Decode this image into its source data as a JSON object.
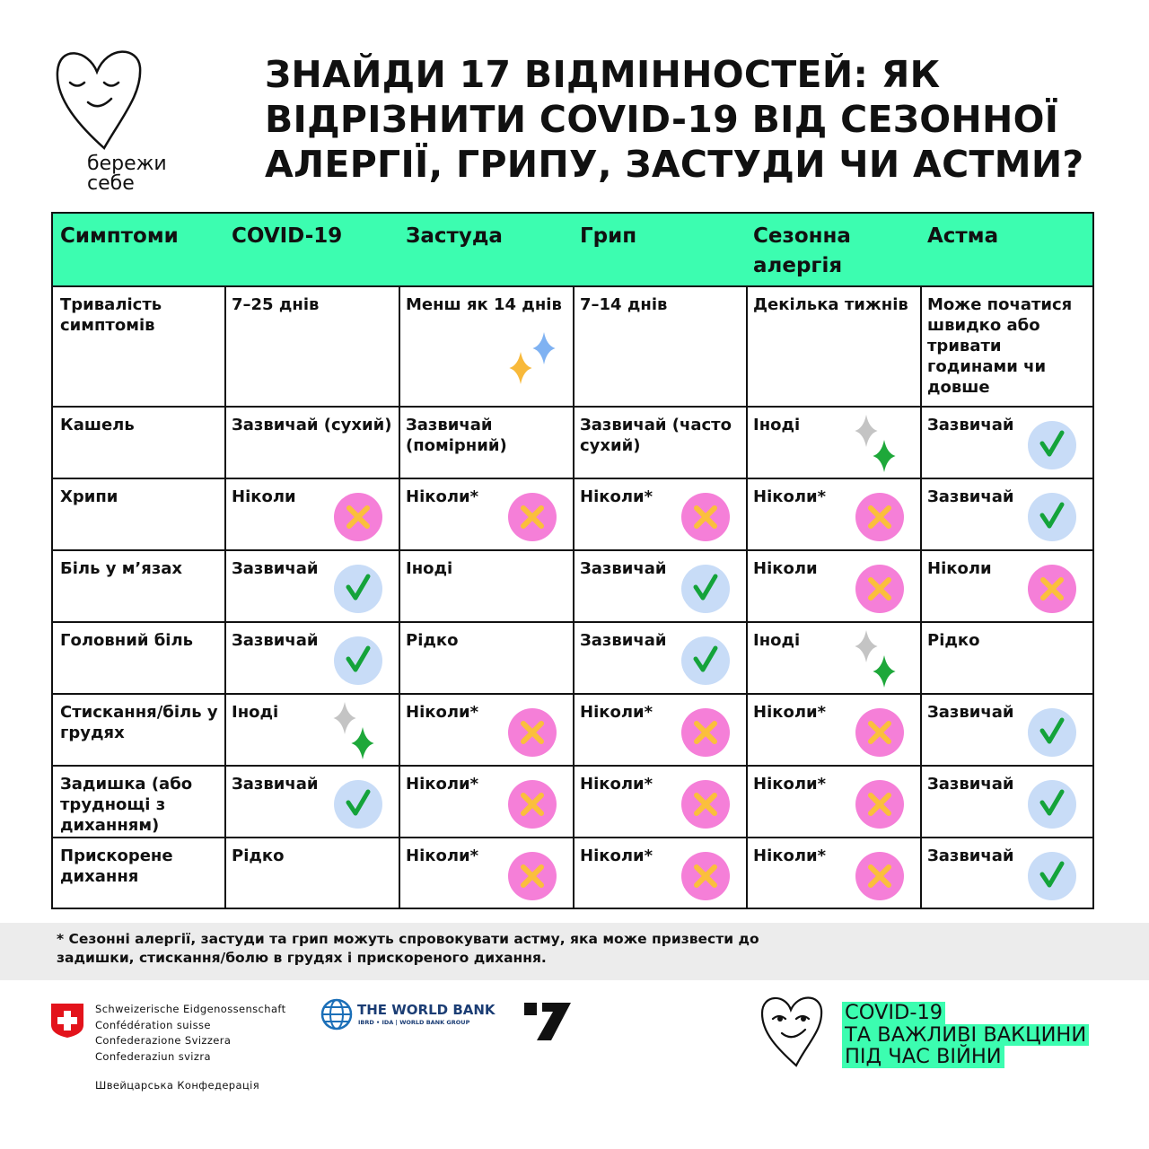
{
  "logo": {
    "line1": "бережи",
    "line2": "себе"
  },
  "title": [
    "ЗНАЙДИ 17 ВІДМІННОСТЕЙ: ЯК",
    "ВІДРІЗНИТИ COVID-19 ВІД СЕЗОННОЇ",
    "АЛЕРГІЇ, ГРИПУ, ЗАСТУДИ ЧИ АСТМИ?"
  ],
  "table": {
    "header": [
      "Симптоми",
      "COVID-19",
      "Застуда",
      "Грип",
      "Сезонна алергія",
      "Астма"
    ],
    "rows": [
      [
        "Тривалість симптомів",
        "7–25 днів",
        "Менш як 14 днів",
        "7–14 днів",
        "Декілька тижнів",
        "Може початися швидко або тривати годинами чи довше"
      ],
      [
        "Кашель",
        "Зазвичай (сухий)",
        "Зазвичай (помірний)",
        "Зазвичай (часто сухий)",
        "Іноді",
        "Зазвичай"
      ],
      [
        "Хрипи",
        "Ніколи",
        "Ніколи*",
        "Ніколи*",
        "Ніколи*",
        "Зазвичай"
      ],
      [
        "Біль у м’язах",
        "Зазвичай",
        "Іноді",
        "Зазвичай",
        "Ніколи",
        "Ніколи"
      ],
      [
        "Головний біль",
        "Зазвичай",
        "Рідко",
        "Зазвичай",
        "Іноді",
        "Рідко"
      ],
      [
        "Стискання/біль у грудях",
        "Іноді",
        "Ніколи*",
        "Ніколи*",
        "Ніколи*",
        "Зазвичай"
      ],
      [
        "Задишка (або труднощі з диханням)",
        "Зазвичай",
        "Ніколи*",
        "Ніколи*",
        "Ніколи*",
        "Зазвичай"
      ],
      [
        "Прискорене дихання",
        "Рідко",
        "Ніколи*",
        "Ніколи*",
        "Ніколи*",
        "Зазвичай"
      ]
    ]
  },
  "footnote": "* Сезонні алергії, застуди та грип можуть спровокувати астму, яка може призвести до задишки, стискання/болю в грудях і прискореного дихання.",
  "partners": {
    "swiss": [
      "Schweizerische Eidgenossenschaft",
      "Confédération suisse",
      "Confederazione Svizzera",
      "Confederaziun svizra"
    ],
    "swiss_ua": "Швейцарська Конфедерація",
    "world_bank": "THE WORLD BANK",
    "world_bank_sub": "IBRD • IDA | WORLD BANK GROUP"
  },
  "campaign": [
    "COVID-19",
    "ТА ВАЖЛИВІ ВАКЦИНИ",
    "ПІД ЧАС ВІЙНИ"
  ]
}
